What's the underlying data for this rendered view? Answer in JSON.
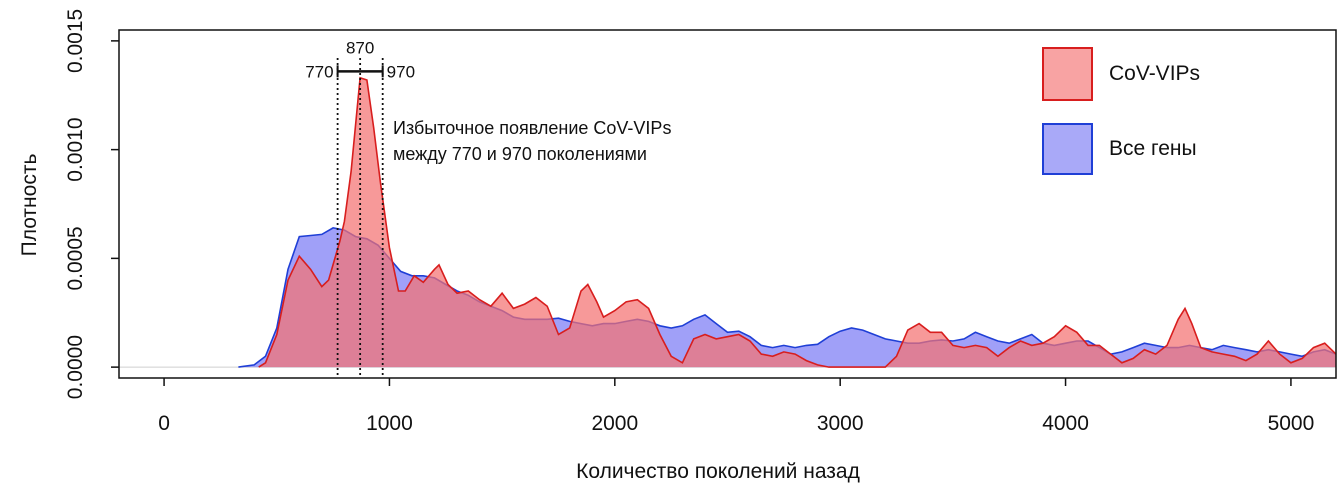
{
  "chart_data": {
    "type": "area",
    "title": "",
    "xlabel": "Количество поколений назад",
    "ylabel": "Плотность",
    "xlim": [
      -200,
      5200
    ],
    "ylim": [
      -5e-05,
      0.00155
    ],
    "x_ticks": [
      {
        "value": 0,
        "label": "0"
      },
      {
        "value": 1000,
        "label": "1000"
      },
      {
        "value": 2000,
        "label": "2000"
      },
      {
        "value": 3000,
        "label": "3000"
      },
      {
        "value": 4000,
        "label": "4000"
      },
      {
        "value": 5000,
        "label": "5000"
      }
    ],
    "y_ticks": [
      {
        "value": 0,
        "label": "0.0000"
      },
      {
        "value": 0.0005,
        "label": "0.0005"
      },
      {
        "value": 0.001,
        "label": "0.0010"
      },
      {
        "value": 0.0015,
        "label": "0.0015"
      }
    ],
    "grid": false,
    "legend_position": "top-right",
    "series": [
      {
        "name": "Все гены",
        "fill": "#7b7bf5",
        "stroke": "#1f3fd6",
        "points": [
          [
            330,
            0
          ],
          [
            400,
            1e-05
          ],
          [
            450,
            5e-05
          ],
          [
            500,
            0.00018
          ],
          [
            550,
            0.00045
          ],
          [
            600,
            0.0006
          ],
          [
            650,
            0.000605
          ],
          [
            700,
            0.00061
          ],
          [
            750,
            0.00064
          ],
          [
            800,
            0.00063
          ],
          [
            850,
            0.0006
          ],
          [
            900,
            0.00059
          ],
          [
            950,
            0.00056
          ],
          [
            1000,
            0.0005
          ],
          [
            1050,
            0.00044
          ],
          [
            1100,
            0.00042
          ],
          [
            1150,
            0.00042
          ],
          [
            1200,
            0.00041
          ],
          [
            1250,
            0.00038
          ],
          [
            1300,
            0.00035
          ],
          [
            1350,
            0.00033
          ],
          [
            1400,
            0.0003
          ],
          [
            1450,
            0.00028
          ],
          [
            1500,
            0.00026
          ],
          [
            1550,
            0.00023
          ],
          [
            1600,
            0.00022
          ],
          [
            1650,
            0.00022
          ],
          [
            1700,
            0.00022
          ],
          [
            1750,
            0.000225
          ],
          [
            1800,
            0.00021
          ],
          [
            1850,
            0.0002
          ],
          [
            1900,
            0.00019
          ],
          [
            1950,
            0.0002
          ],
          [
            2000,
            0.0002
          ],
          [
            2050,
            0.00021
          ],
          [
            2100,
            0.00022
          ],
          [
            2150,
            0.00021
          ],
          [
            2200,
            0.00019
          ],
          [
            2250,
            0.00018
          ],
          [
            2300,
            0.00019
          ],
          [
            2350,
            0.00022
          ],
          [
            2400,
            0.00024
          ],
          [
            2450,
            0.0002
          ],
          [
            2500,
            0.00016
          ],
          [
            2550,
            0.000165
          ],
          [
            2600,
            0.00014
          ],
          [
            2650,
            0.0001
          ],
          [
            2700,
            9e-05
          ],
          [
            2750,
            0.0001
          ],
          [
            2800,
            9e-05
          ],
          [
            2850,
            0.0001
          ],
          [
            2900,
            0.000105
          ],
          [
            2950,
            0.00014
          ],
          [
            3000,
            0.000165
          ],
          [
            3050,
            0.00018
          ],
          [
            3100,
            0.00017
          ],
          [
            3150,
            0.00015
          ],
          [
            3200,
            0.00013
          ],
          [
            3250,
            0.00012
          ],
          [
            3300,
            0.00011
          ],
          [
            3350,
            0.00011
          ],
          [
            3400,
            0.00012
          ],
          [
            3450,
            0.000125
          ],
          [
            3500,
            0.00012
          ],
          [
            3550,
            0.00013
          ],
          [
            3600,
            0.00016
          ],
          [
            3650,
            0.00014
          ],
          [
            3700,
            0.00012
          ],
          [
            3750,
            0.00011
          ],
          [
            3800,
            0.00013
          ],
          [
            3850,
            0.00015
          ],
          [
            3900,
            0.00011
          ],
          [
            3950,
            0.0001
          ],
          [
            4000,
            0.00011
          ],
          [
            4050,
            0.00012
          ],
          [
            4100,
            0.00012
          ],
          [
            4150,
            9e-05
          ],
          [
            4200,
            6e-05
          ],
          [
            4250,
            7e-05
          ],
          [
            4300,
            9e-05
          ],
          [
            4350,
            0.00011
          ],
          [
            4400,
            0.0001
          ],
          [
            4450,
            9e-05
          ],
          [
            4500,
            9e-05
          ],
          [
            4550,
            0.0001
          ],
          [
            4600,
            9e-05
          ],
          [
            4650,
            8e-05
          ],
          [
            4700,
            0.0001
          ],
          [
            4750,
            9e-05
          ],
          [
            4800,
            8e-05
          ],
          [
            4850,
            7e-05
          ],
          [
            4900,
            8e-05
          ],
          [
            4950,
            7e-05
          ],
          [
            5000,
            6e-05
          ],
          [
            5050,
            5e-05
          ],
          [
            5100,
            7e-05
          ],
          [
            5150,
            8e-05
          ],
          [
            5200,
            6e-05
          ]
        ]
      },
      {
        "name": "CoV-VIPs",
        "fill": "#f47272",
        "stroke": "#d81e1e",
        "points": [
          [
            420,
            0
          ],
          [
            450,
            2e-05
          ],
          [
            500,
            0.00015
          ],
          [
            550,
            0.0004
          ],
          [
            600,
            0.00051
          ],
          [
            650,
            0.00045
          ],
          [
            700,
            0.00037
          ],
          [
            730,
            0.0004
          ],
          [
            780,
            0.00058
          ],
          [
            800,
            0.00067
          ],
          [
            830,
            0.0009
          ],
          [
            870,
            0.00133
          ],
          [
            900,
            0.00132
          ],
          [
            930,
            0.0011
          ],
          [
            960,
            0.00085
          ],
          [
            1000,
            0.00055
          ],
          [
            1040,
            0.00035
          ],
          [
            1070,
            0.00035
          ],
          [
            1110,
            0.00042
          ],
          [
            1150,
            0.00039
          ],
          [
            1200,
            0.00045
          ],
          [
            1220,
            0.00047
          ],
          [
            1260,
            0.00038
          ],
          [
            1300,
            0.00034
          ],
          [
            1350,
            0.00035
          ],
          [
            1400,
            0.00031
          ],
          [
            1450,
            0.00028
          ],
          [
            1500,
            0.00034
          ],
          [
            1550,
            0.00027
          ],
          [
            1600,
            0.00029
          ],
          [
            1650,
            0.00032
          ],
          [
            1700,
            0.00028
          ],
          [
            1750,
            0.00015
          ],
          [
            1800,
            0.00018
          ],
          [
            1850,
            0.00035
          ],
          [
            1880,
            0.00038
          ],
          [
            1920,
            0.0003
          ],
          [
            1950,
            0.00023
          ],
          [
            2000,
            0.00026
          ],
          [
            2050,
            0.0003
          ],
          [
            2100,
            0.00031
          ],
          [
            2150,
            0.00027
          ],
          [
            2200,
            0.00015
          ],
          [
            2250,
            5e-05
          ],
          [
            2300,
            2e-05
          ],
          [
            2350,
            0.00013
          ],
          [
            2400,
            0.00015
          ],
          [
            2450,
            0.00013
          ],
          [
            2500,
            0.00014
          ],
          [
            2550,
            0.00015
          ],
          [
            2600,
            0.00012
          ],
          [
            2650,
            6e-05
          ],
          [
            2700,
            5e-05
          ],
          [
            2750,
            7e-05
          ],
          [
            2800,
            6e-05
          ],
          [
            2850,
            3e-05
          ],
          [
            2900,
            1e-05
          ],
          [
            2950,
            0
          ],
          [
            3000,
            0
          ],
          [
            3050,
            0
          ],
          [
            3100,
            0
          ],
          [
            3150,
            0
          ],
          [
            3200,
            0
          ],
          [
            3250,
            5e-05
          ],
          [
            3300,
            0.00017
          ],
          [
            3350,
            0.0002
          ],
          [
            3400,
            0.00016
          ],
          [
            3450,
            0.00016
          ],
          [
            3500,
            0.0001
          ],
          [
            3550,
            9e-05
          ],
          [
            3600,
            0.0001
          ],
          [
            3650,
            9e-05
          ],
          [
            3700,
            5e-05
          ],
          [
            3750,
            9e-05
          ],
          [
            3800,
            0.00012
          ],
          [
            3850,
            0.0001
          ],
          [
            3900,
            0.00011
          ],
          [
            3950,
            0.00014
          ],
          [
            4000,
            0.00019
          ],
          [
            4050,
            0.00016
          ],
          [
            4100,
            0.0001
          ],
          [
            4150,
            0.0001
          ],
          [
            4200,
            6e-05
          ],
          [
            4250,
            2e-05
          ],
          [
            4300,
            4e-05
          ],
          [
            4350,
            8e-05
          ],
          [
            4400,
            6e-05
          ],
          [
            4450,
            0.0001
          ],
          [
            4500,
            0.00022
          ],
          [
            4530,
            0.00027
          ],
          [
            4560,
            0.0002
          ],
          [
            4600,
            9e-05
          ],
          [
            4650,
            7e-05
          ],
          [
            4700,
            6e-05
          ],
          [
            4750,
            5e-05
          ],
          [
            4800,
            3e-05
          ],
          [
            4850,
            6e-05
          ],
          [
            4900,
            0.00012
          ],
          [
            4950,
            6e-05
          ],
          [
            5000,
            2e-05
          ],
          [
            5050,
            4e-05
          ],
          [
            5100,
            9e-05
          ],
          [
            5150,
            0.00011
          ],
          [
            5200,
            6e-05
          ]
        ]
      }
    ],
    "reference_lines": [
      {
        "x": 770,
        "label": "770"
      },
      {
        "x": 870,
        "label": "870"
      },
      {
        "x": 970,
        "label": "970"
      }
    ],
    "bracket": {
      "from": 770,
      "to": 970,
      "y": 0.00136
    },
    "annotation": {
      "lines": [
        "Избыточное появление CoV-VIPs",
        "между 770 и 970 поколениями"
      ]
    }
  }
}
